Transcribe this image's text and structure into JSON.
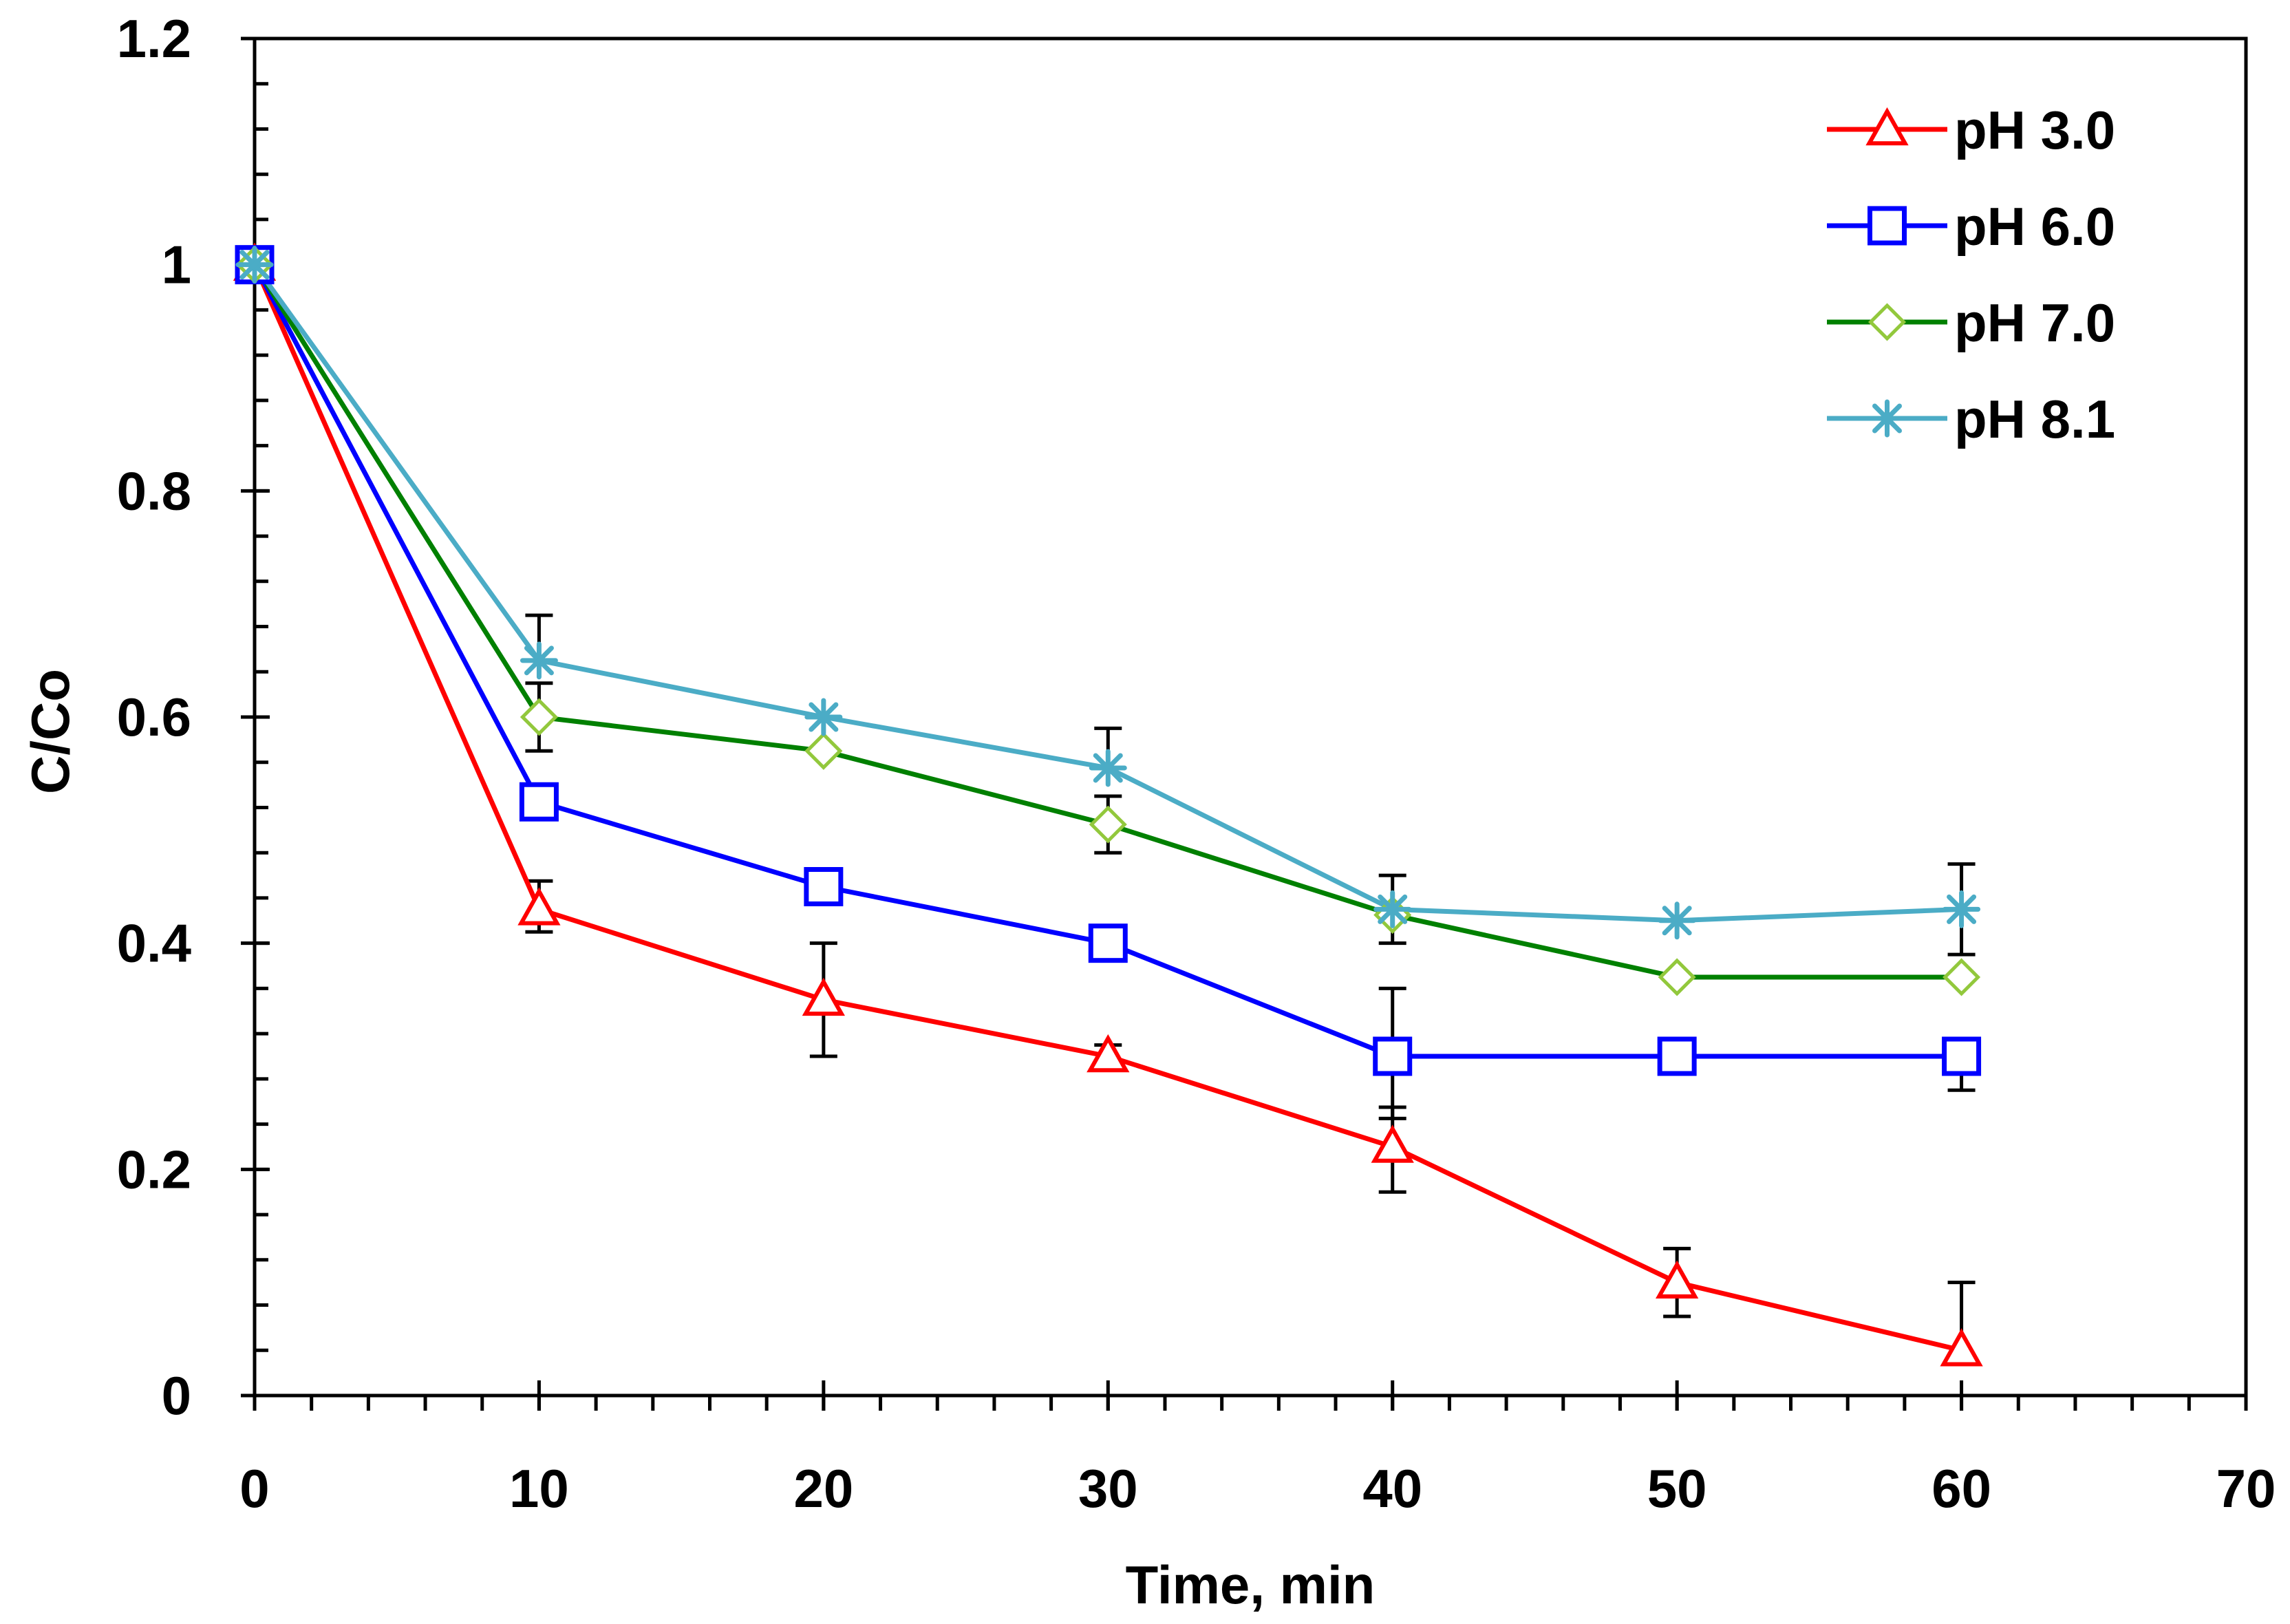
{
  "chart_data": {
    "type": "line",
    "title": "",
    "xlabel": "Time, min",
    "ylabel": "C/Co",
    "xlim": [
      0,
      70
    ],
    "ylim": [
      0,
      1.2
    ],
    "x_ticks": [
      0,
      10,
      20,
      30,
      40,
      50,
      60,
      70
    ],
    "y_ticks": [
      0,
      0.2,
      0.4,
      0.6,
      0.8,
      1,
      1.2
    ],
    "x_tick_labels": [
      "0",
      "10",
      "20",
      "30",
      "40",
      "50",
      "60",
      "70"
    ],
    "y_tick_labels": [
      "0",
      "0.2",
      "0.4",
      "0.6",
      "0.8",
      "1",
      "1.2"
    ],
    "x_minor_step": 2,
    "y_minor_step": 0.04,
    "grid": false,
    "legend_position": "top-right",
    "x": [
      0,
      10,
      20,
      30,
      40,
      50,
      60
    ],
    "series": [
      {
        "name": "pH 3.0",
        "color": "#ff0000",
        "marker": "triangle",
        "values": [
          1.0,
          0.43,
          0.35,
          0.3,
          0.22,
          0.1,
          0.04
        ],
        "error_upper": [
          0.0,
          0.455,
          0.4,
          0.31,
          0.255,
          0.13,
          0.1
        ],
        "error_lower": [
          1.0,
          0.41,
          0.3,
          0.29,
          0.18,
          0.07,
          0.04
        ]
      },
      {
        "name": "pH 6.0",
        "color": "#0000ff",
        "marker": "square",
        "values": [
          1.0,
          0.525,
          0.45,
          0.4,
          0.3,
          0.3,
          0.3
        ],
        "error_upper": [
          0.0,
          0.525,
          0.45,
          0.4,
          0.36,
          0.3,
          0.3
        ],
        "error_lower": [
          1.0,
          0.525,
          0.45,
          0.4,
          0.245,
          0.3,
          0.27
        ]
      },
      {
        "name": "pH 7.0",
        "color": "#008000",
        "marker": "diamond",
        "values": [
          1.0,
          0.6,
          0.57,
          0.505,
          0.425,
          0.37,
          0.37
        ],
        "error_upper": [
          0.0,
          0.63,
          0.57,
          0.53,
          0.425,
          0.37,
          0.37
        ],
        "error_lower": [
          1.0,
          0.57,
          0.57,
          0.48,
          0.4,
          0.37,
          0.37
        ]
      },
      {
        "name": "pH 8.1",
        "color": "#4bacc6",
        "marker": "asterisk",
        "values": [
          1.0,
          0.65,
          0.6,
          0.555,
          0.43,
          0.42,
          0.43
        ],
        "error_upper": [
          0.0,
          0.69,
          0.6,
          0.59,
          0.46,
          0.42,
          0.47
        ],
        "error_lower": [
          1.0,
          0.65,
          0.6,
          0.555,
          0.43,
          0.42,
          0.39
        ]
      }
    ]
  }
}
